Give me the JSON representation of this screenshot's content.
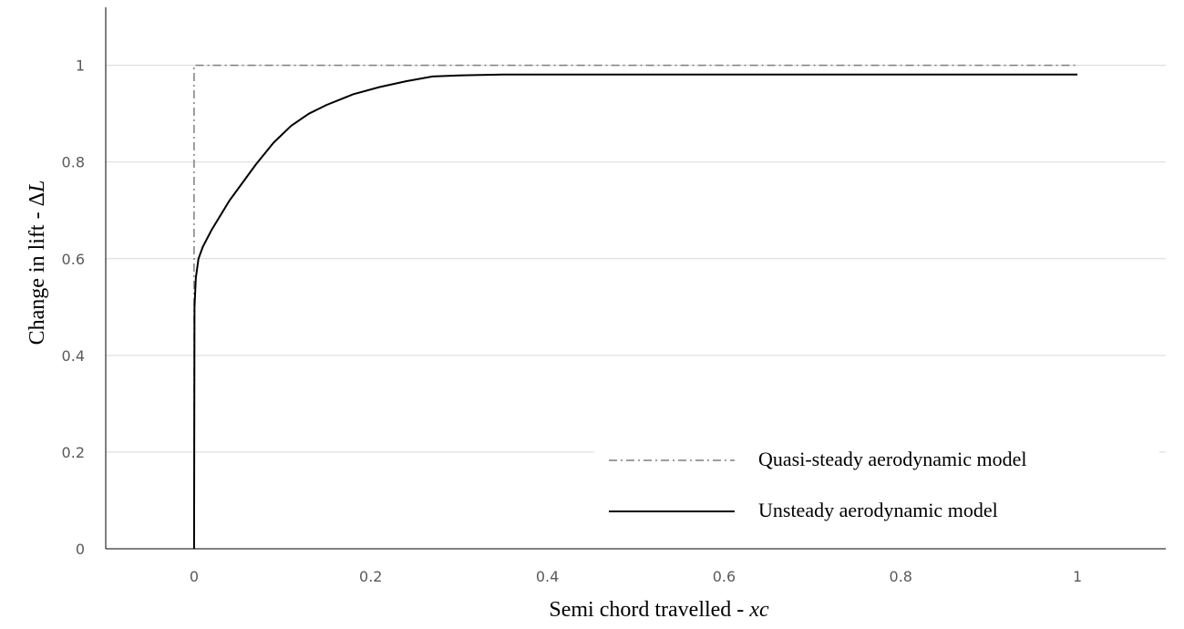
{
  "chart_data": {
    "type": "line",
    "xlabel": "Semi chord travelled - ",
    "xlabel_var": "xc",
    "ylabel": "Change in lift - Δ",
    "ylabel_var": "L",
    "xlim": [
      -0.1,
      1.1
    ],
    "ylim": [
      0,
      1.12
    ],
    "x_ticks": [
      0,
      0.2,
      0.4,
      0.6,
      0.8,
      1
    ],
    "x_tick_labels": [
      "0",
      "0.2",
      "0.4",
      "0.6",
      "0.8",
      "1"
    ],
    "y_ticks": [
      0,
      0.2,
      0.4,
      0.6,
      0.8,
      1
    ],
    "y_tick_labels": [
      "0",
      "0.2",
      "0.4",
      "0.6",
      "0.8",
      "1"
    ],
    "grid": "horizontal",
    "legend_position": "bottom-right",
    "series": [
      {
        "name": "Quasi-steady aerodynamic model",
        "style": "dash-dot",
        "color": "#7f7f7f",
        "x": [
          0,
          0,
          1
        ],
        "y": [
          0,
          1,
          1
        ]
      },
      {
        "name": "Unsteady aerodynamic model",
        "style": "solid",
        "color": "#000000",
        "x": [
          0,
          0.0005,
          0.002,
          0.005,
          0.01,
          0.02,
          0.03,
          0.04,
          0.05,
          0.07,
          0.09,
          0.11,
          0.13,
          0.15,
          0.18,
          0.21,
          0.24,
          0.27,
          0.3,
          0.35,
          0.4,
          0.6,
          0.8,
          1
        ],
        "y": [
          0,
          0.5,
          0.56,
          0.6,
          0.625,
          0.66,
          0.69,
          0.72,
          0.745,
          0.795,
          0.84,
          0.875,
          0.9,
          0.918,
          0.94,
          0.955,
          0.967,
          0.977,
          0.979,
          0.981,
          0.981,
          0.981,
          0.981,
          0.981
        ]
      }
    ]
  }
}
